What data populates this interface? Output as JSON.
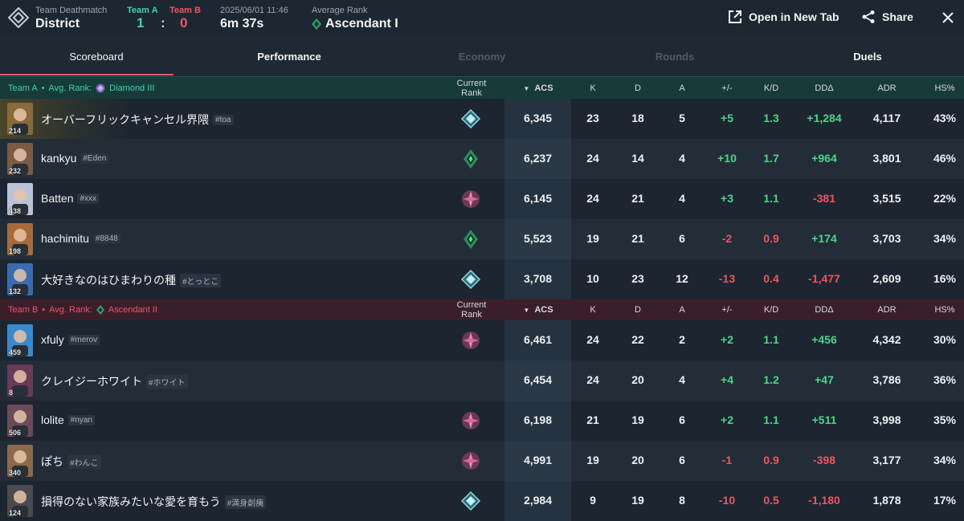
{
  "header": {
    "mode": "Team Deathmatch",
    "map": "District",
    "team_a_label": "Team A",
    "team_b_label": "Team B",
    "score_a": "1",
    "score_sep": ":",
    "score_b": "0",
    "date": "2025/06/01 11:46",
    "duration": "6m 37s",
    "avg_rank_label": "Average Rank",
    "avg_rank": "Ascendant I",
    "open_tab": "Open in New Tab",
    "share": "Share"
  },
  "tabs": [
    {
      "label": "Scoreboard",
      "state": "active"
    },
    {
      "label": "Performance",
      "state": "normal"
    },
    {
      "label": "Economy",
      "state": "disabled"
    },
    {
      "label": "Rounds",
      "state": "disabled"
    },
    {
      "label": "Duels",
      "state": "normal"
    }
  ],
  "columns": {
    "rank": "Current Rank",
    "acs": "ACS",
    "k": "K",
    "d": "D",
    "a": "A",
    "pm": "+/-",
    "kd": "K/D",
    "dd": "DDΔ",
    "adr": "ADR",
    "hs": "HS%"
  },
  "team_a": {
    "label": "Team A",
    "dot": "•",
    "avg_label": "Avg. Rank:",
    "avg_rank": "Diamond III",
    "color": "#3fd3b1",
    "players": [
      {
        "name": "オーバーフリックキャンセル界隈",
        "tag": "#toa",
        "level": "214",
        "rank_icon": "ascendant-teal-icon",
        "acs": "6,345",
        "k": "23",
        "d": "18",
        "a": "5",
        "pm": "+5",
        "kd": "1.3",
        "dd": "+1,284",
        "adr": "4,117",
        "hs": "43%",
        "pm_sign": "pos",
        "kd_sign": "pos",
        "dd_sign": "pos"
      },
      {
        "name": "kankyu",
        "tag": "#Eden",
        "level": "232",
        "rank_icon": "ascendant-green-icon",
        "acs": "6,237",
        "k": "24",
        "d": "14",
        "a": "4",
        "pm": "+10",
        "kd": "1.7",
        "dd": "+964",
        "adr": "3,801",
        "hs": "46%",
        "pm_sign": "pos",
        "kd_sign": "pos",
        "dd_sign": "pos"
      },
      {
        "name": "Batten",
        "tag": "#xxx",
        "level": "438",
        "rank_icon": "diamond-pink-icon",
        "acs": "6,145",
        "k": "24",
        "d": "21",
        "a": "4",
        "pm": "+3",
        "kd": "1.1",
        "dd": "-381",
        "adr": "3,515",
        "hs": "22%",
        "pm_sign": "pos",
        "kd_sign": "pos",
        "dd_sign": "neg"
      },
      {
        "name": "hachimitu",
        "tag": "#8848",
        "level": "198",
        "rank_icon": "ascendant-green-icon",
        "acs": "5,523",
        "k": "19",
        "d": "21",
        "a": "6",
        "pm": "-2",
        "kd": "0.9",
        "dd": "+174",
        "adr": "3,703",
        "hs": "34%",
        "pm_sign": "neg",
        "kd_sign": "neg",
        "dd_sign": "pos"
      },
      {
        "name": "大好きなのはひまわりの種",
        "tag": "#とっとこ",
        "level": "132",
        "rank_icon": "ascendant-teal-icon",
        "acs": "3,708",
        "k": "10",
        "d": "23",
        "a": "12",
        "pm": "-13",
        "kd": "0.4",
        "dd": "-1,477",
        "adr": "2,609",
        "hs": "16%",
        "pm_sign": "neg",
        "kd_sign": "neg",
        "dd_sign": "neg"
      }
    ]
  },
  "team_b": {
    "label": "Team B",
    "dot": "•",
    "avg_label": "Avg. Rank:",
    "avg_rank": "Ascendant II",
    "color": "#f05464",
    "players": [
      {
        "name": "xfuly",
        "tag": "#merov",
        "level": "459",
        "rank_icon": "diamond-pink-icon",
        "acs": "6,461",
        "k": "24",
        "d": "22",
        "a": "2",
        "pm": "+2",
        "kd": "1.1",
        "dd": "+456",
        "adr": "4,342",
        "hs": "30%",
        "pm_sign": "pos",
        "kd_sign": "pos",
        "dd_sign": "pos"
      },
      {
        "name": "クレイジーホワイト",
        "tag": "#ホワイト",
        "level": "8",
        "rank_icon": "",
        "acs": "6,454",
        "k": "24",
        "d": "20",
        "a": "4",
        "pm": "+4",
        "kd": "1.2",
        "dd": "+47",
        "adr": "3,786",
        "hs": "36%",
        "pm_sign": "pos",
        "kd_sign": "pos",
        "dd_sign": "pos"
      },
      {
        "name": "lolite",
        "tag": "#nyan",
        "level": "506",
        "rank_icon": "diamond-pink-icon",
        "acs": "6,198",
        "k": "21",
        "d": "19",
        "a": "6",
        "pm": "+2",
        "kd": "1.1",
        "dd": "+511",
        "adr": "3,998",
        "hs": "35%",
        "pm_sign": "pos",
        "kd_sign": "pos",
        "dd_sign": "pos"
      },
      {
        "name": "ぽち",
        "tag": "#わんこ",
        "level": "340",
        "rank_icon": "diamond-pink-icon",
        "acs": "4,991",
        "k": "19",
        "d": "20",
        "a": "6",
        "pm": "-1",
        "kd": "0.9",
        "dd": "-398",
        "adr": "3,177",
        "hs": "34%",
        "pm_sign": "neg",
        "kd_sign": "neg",
        "dd_sign": "neg"
      },
      {
        "name": "損得のない家族みたいな愛を育もう",
        "tag": "#満身創痍",
        "level": "124",
        "rank_icon": "ascendant-teal-icon",
        "acs": "2,984",
        "k": "9",
        "d": "19",
        "a": "8",
        "pm": "-10",
        "kd": "0.5",
        "dd": "-1,180",
        "adr": "1,878",
        "hs": "17%",
        "pm_sign": "neg",
        "kd_sign": "neg",
        "dd_sign": "neg"
      }
    ]
  }
}
